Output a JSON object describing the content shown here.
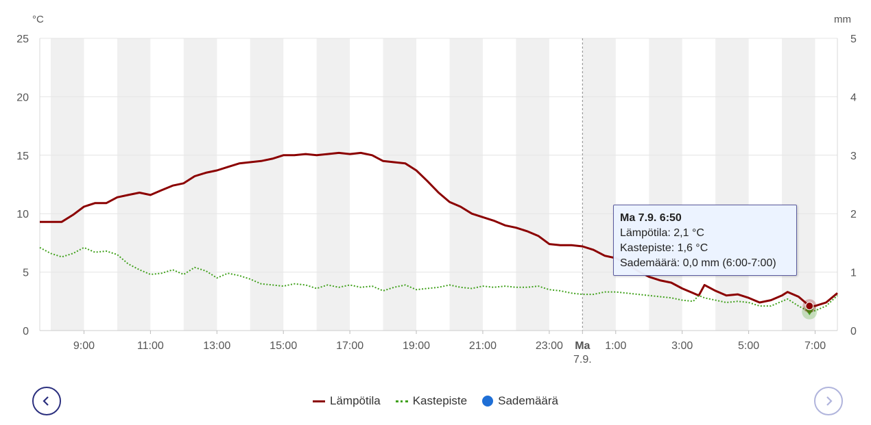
{
  "chart_data": {
    "type": "line",
    "left_axis": {
      "unit": "°C",
      "ticks": [
        0,
        5,
        10,
        15,
        20,
        25
      ],
      "ylim": [
        0,
        25
      ]
    },
    "right_axis": {
      "unit": "mm",
      "ticks": [
        0,
        1,
        2,
        3,
        4,
        5
      ],
      "ylim": [
        0,
        5
      ]
    },
    "x_ticks": [
      {
        "label": "9:00",
        "h": 9
      },
      {
        "label": "11:00",
        "h": 11
      },
      {
        "label": "13:00",
        "h": 13
      },
      {
        "label": "15:00",
        "h": 15
      },
      {
        "label": "17:00",
        "h": 17
      },
      {
        "label": "19:00",
        "h": 19
      },
      {
        "label": "21:00",
        "h": 21
      },
      {
        "label": "23:00",
        "h": 23
      },
      {
        "label": "Ma",
        "sub": "7.9.",
        "h": 24,
        "bold": true
      },
      {
        "label": "1:00",
        "h": 25
      },
      {
        "label": "3:00",
        "h": 27
      },
      {
        "label": "5:00",
        "h": 29
      },
      {
        "label": "7:00",
        "h": 31
      }
    ],
    "x_range_hours": [
      7.67,
      31.67
    ],
    "day_divider_hour": 24,
    "series": [
      {
        "name": "Lämpötila",
        "color": "#8b0000",
        "style": "solid",
        "points": [
          [
            7.67,
            9.3
          ],
          [
            8.33,
            9.3
          ],
          [
            8.67,
            9.9
          ],
          [
            9.0,
            10.6
          ],
          [
            9.33,
            10.9
          ],
          [
            9.67,
            10.9
          ],
          [
            10.0,
            11.4
          ],
          [
            10.33,
            11.6
          ],
          [
            10.67,
            11.8
          ],
          [
            11.0,
            11.6
          ],
          [
            11.33,
            12.0
          ],
          [
            11.67,
            12.4
          ],
          [
            12.0,
            12.6
          ],
          [
            12.33,
            13.2
          ],
          [
            12.67,
            13.5
          ],
          [
            13.0,
            13.7
          ],
          [
            13.33,
            14.0
          ],
          [
            13.67,
            14.3
          ],
          [
            14.0,
            14.4
          ],
          [
            14.33,
            14.5
          ],
          [
            14.67,
            14.7
          ],
          [
            15.0,
            15.0
          ],
          [
            15.33,
            15.0
          ],
          [
            15.67,
            15.1
          ],
          [
            16.0,
            15.0
          ],
          [
            16.33,
            15.1
          ],
          [
            16.67,
            15.2
          ],
          [
            17.0,
            15.1
          ],
          [
            17.33,
            15.2
          ],
          [
            17.67,
            15.0
          ],
          [
            18.0,
            14.5
          ],
          [
            18.33,
            14.4
          ],
          [
            18.67,
            14.3
          ],
          [
            19.0,
            13.7
          ],
          [
            19.33,
            12.8
          ],
          [
            19.67,
            11.8
          ],
          [
            20.0,
            11.0
          ],
          [
            20.33,
            10.6
          ],
          [
            20.67,
            10.0
          ],
          [
            21.0,
            9.7
          ],
          [
            21.33,
            9.4
          ],
          [
            21.67,
            9.0
          ],
          [
            22.0,
            8.8
          ],
          [
            22.33,
            8.5
          ],
          [
            22.67,
            8.1
          ],
          [
            23.0,
            7.4
          ],
          [
            23.33,
            7.3
          ],
          [
            23.67,
            7.3
          ],
          [
            24.0,
            7.2
          ],
          [
            24.33,
            6.9
          ],
          [
            24.67,
            6.4
          ],
          [
            25.0,
            6.2
          ],
          [
            25.33,
            5.7
          ],
          [
            25.67,
            5.1
          ],
          [
            26.0,
            4.6
          ],
          [
            26.33,
            4.3
          ],
          [
            26.67,
            4.1
          ],
          [
            27.0,
            3.6
          ],
          [
            27.33,
            3.2
          ],
          [
            27.5,
            3.0
          ],
          [
            27.67,
            3.9
          ],
          [
            28.0,
            3.4
          ],
          [
            28.33,
            3.0
          ],
          [
            28.67,
            3.1
          ],
          [
            29.0,
            2.8
          ],
          [
            29.33,
            2.4
          ],
          [
            29.67,
            2.6
          ],
          [
            30.0,
            3.0
          ],
          [
            30.17,
            3.3
          ],
          [
            30.5,
            2.9
          ],
          [
            30.83,
            2.1
          ],
          [
            31.0,
            2.1
          ],
          [
            31.33,
            2.4
          ],
          [
            31.67,
            3.2
          ]
        ]
      },
      {
        "name": "Kastepiste",
        "color": "#3fa01a",
        "style": "dotted",
        "points": [
          [
            7.67,
            7.1
          ],
          [
            8.0,
            6.6
          ],
          [
            8.33,
            6.3
          ],
          [
            8.67,
            6.6
          ],
          [
            9.0,
            7.1
          ],
          [
            9.33,
            6.7
          ],
          [
            9.67,
            6.8
          ],
          [
            10.0,
            6.5
          ],
          [
            10.33,
            5.7
          ],
          [
            10.67,
            5.2
          ],
          [
            11.0,
            4.8
          ],
          [
            11.33,
            4.9
          ],
          [
            11.67,
            5.2
          ],
          [
            12.0,
            4.8
          ],
          [
            12.33,
            5.4
          ],
          [
            12.67,
            5.1
          ],
          [
            13.0,
            4.5
          ],
          [
            13.33,
            4.9
          ],
          [
            13.67,
            4.7
          ],
          [
            14.0,
            4.4
          ],
          [
            14.33,
            4.0
          ],
          [
            14.67,
            3.9
          ],
          [
            15.0,
            3.8
          ],
          [
            15.33,
            4.0
          ],
          [
            15.67,
            3.9
          ],
          [
            16.0,
            3.6
          ],
          [
            16.33,
            3.9
          ],
          [
            16.67,
            3.7
          ],
          [
            17.0,
            3.9
          ],
          [
            17.33,
            3.7
          ],
          [
            17.67,
            3.8
          ],
          [
            18.0,
            3.4
          ],
          [
            18.33,
            3.7
          ],
          [
            18.67,
            3.9
          ],
          [
            19.0,
            3.5
          ],
          [
            19.33,
            3.6
          ],
          [
            19.67,
            3.7
          ],
          [
            20.0,
            3.9
          ],
          [
            20.33,
            3.7
          ],
          [
            20.67,
            3.6
          ],
          [
            21.0,
            3.8
          ],
          [
            21.33,
            3.7
          ],
          [
            21.67,
            3.8
          ],
          [
            22.0,
            3.7
          ],
          [
            22.33,
            3.7
          ],
          [
            22.67,
            3.8
          ],
          [
            23.0,
            3.5
          ],
          [
            23.33,
            3.4
          ],
          [
            23.67,
            3.2
          ],
          [
            24.0,
            3.1
          ],
          [
            24.33,
            3.1
          ],
          [
            24.67,
            3.3
          ],
          [
            25.0,
            3.3
          ],
          [
            25.33,
            3.2
          ],
          [
            25.67,
            3.1
          ],
          [
            26.0,
            3.0
          ],
          [
            26.33,
            2.9
          ],
          [
            26.67,
            2.8
          ],
          [
            27.0,
            2.6
          ],
          [
            27.33,
            2.5
          ],
          [
            27.5,
            3.0
          ],
          [
            27.67,
            2.8
          ],
          [
            28.0,
            2.6
          ],
          [
            28.33,
            2.4
          ],
          [
            28.67,
            2.5
          ],
          [
            29.0,
            2.4
          ],
          [
            29.33,
            2.1
          ],
          [
            29.67,
            2.1
          ],
          [
            30.0,
            2.5
          ],
          [
            30.17,
            2.7
          ],
          [
            30.5,
            2.1
          ],
          [
            30.83,
            1.6
          ],
          [
            31.0,
            1.7
          ],
          [
            31.33,
            2.1
          ],
          [
            31.67,
            3.0
          ]
        ]
      }
    ],
    "legend": [
      {
        "name": "Lämpötila",
        "symbol": "line",
        "color": "#8b0000"
      },
      {
        "name": "Kastepiste",
        "symbol": "dotted-line",
        "color": "#3fa01a"
      },
      {
        "name": "Sademäärä",
        "symbol": "circle",
        "color": "#1f6fd6"
      }
    ],
    "tooltip": {
      "x_hour": 30.83,
      "title": "Ma 7.9. 6:50",
      "lines": [
        "Lämpötila: 2,1 °C",
        "Kastepiste: 1,6 °C",
        "Sademäärä: 0,0 mm (6:00-7:00)"
      ]
    },
    "grid": true,
    "legend_position": "bottom-center"
  },
  "nav": {
    "prev_icon": "chevron-left-icon",
    "next_icon": "chevron-right-icon"
  }
}
